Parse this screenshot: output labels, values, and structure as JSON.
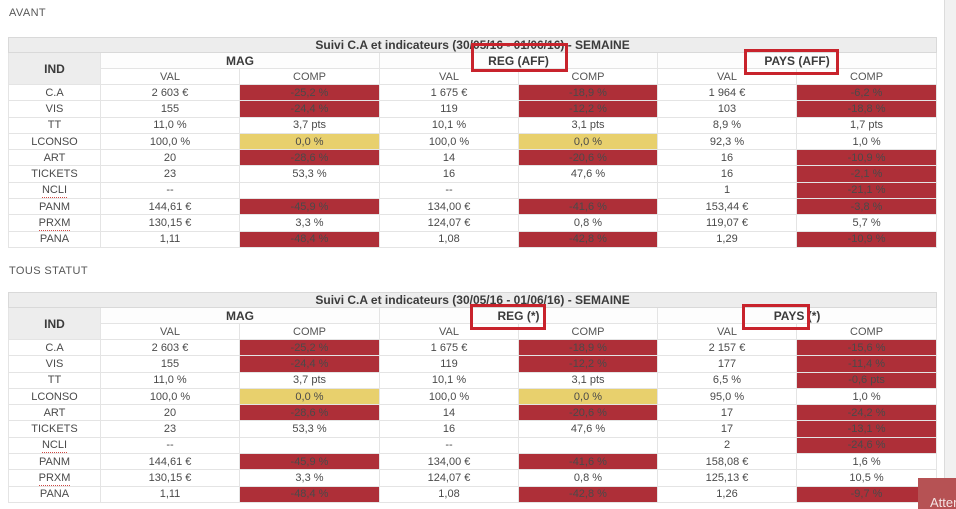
{
  "sections": [
    {
      "label": "AVANT"
    },
    {
      "label": "TOUS STATUT"
    }
  ],
  "toast": {
    "label": "Atten"
  },
  "scrollbar": {
    "name": "vertical-scrollbar"
  },
  "colors": {
    "negative_cell_bg": "#ae2f38",
    "negative_cell_text": "#ffffff",
    "warning_cell_bg": "#e8d06d",
    "header_bg": "#ededed",
    "annotation_border": "#c8232c",
    "toast_bg": "#b65254",
    "spellcheck_underline": "#d04a44"
  },
  "tables": [
    {
      "title": "Suivi C.A et indicateurs (30/05/16 - 01/06/16) - SEMAINE",
      "ind_header": "IND",
      "groups": [
        {
          "label": "MAG",
          "boxed": false
        },
        {
          "label": "REG (AFF)",
          "boxed": true
        },
        {
          "label": "PAYS (AFF)",
          "boxed": true
        }
      ],
      "subheaders": [
        {
          "label": "VAL",
          "sq": false
        },
        {
          "label": "COMP",
          "sq": true
        },
        {
          "label": "VAL",
          "sq": false
        },
        {
          "label": "COMP",
          "sq": true
        },
        {
          "label": "VAL",
          "sq": false
        },
        {
          "label": "COMP",
          "sq": true
        }
      ],
      "rows": [
        {
          "ind": "C.A",
          "sq": false,
          "cells": [
            {
              "v": "2 603 €",
              "s": "plain"
            },
            {
              "v": "-25,2 %",
              "s": "neg"
            },
            {
              "v": "1 675 €",
              "s": "plain"
            },
            {
              "v": "-18,9 %",
              "s": "neg"
            },
            {
              "v": "1 964 €",
              "s": "plain"
            },
            {
              "v": "-6,2 %",
              "s": "neg"
            }
          ]
        },
        {
          "ind": "VIS",
          "sq": false,
          "cells": [
            {
              "v": "155",
              "s": "plain"
            },
            {
              "v": "-24,4 %",
              "s": "neg"
            },
            {
              "v": "119",
              "s": "plain"
            },
            {
              "v": "-12,2 %",
              "s": "neg"
            },
            {
              "v": "103",
              "s": "plain"
            },
            {
              "v": "-18,8 %",
              "s": "neg"
            }
          ]
        },
        {
          "ind": "TT",
          "sq": false,
          "cells": [
            {
              "v": "11,0 %",
              "s": "plain"
            },
            {
              "v": "3,7 pts",
              "s": "plain"
            },
            {
              "v": "10,1 %",
              "s": "plain"
            },
            {
              "v": "3,1 pts",
              "s": "plain"
            },
            {
              "v": "8,9 %",
              "s": "plain"
            },
            {
              "v": "1,7 pts",
              "s": "plain"
            }
          ]
        },
        {
          "ind": "LCONSO",
          "sq": true,
          "cells": [
            {
              "v": "100,0 %",
              "s": "plain"
            },
            {
              "v": "0,0 %",
              "s": "warn"
            },
            {
              "v": "100,0 %",
              "s": "plain"
            },
            {
              "v": "0,0 %",
              "s": "warn"
            },
            {
              "v": "92,3 %",
              "s": "plain"
            },
            {
              "v": "1,0 %",
              "s": "plain"
            }
          ]
        },
        {
          "ind": "ART",
          "sq": false,
          "cells": [
            {
              "v": "20",
              "s": "plain"
            },
            {
              "v": "-28,6 %",
              "s": "neg"
            },
            {
              "v": "14",
              "s": "plain"
            },
            {
              "v": "-20,6 %",
              "s": "neg"
            },
            {
              "v": "16",
              "s": "plain"
            },
            {
              "v": "-10,9 %",
              "s": "neg"
            }
          ]
        },
        {
          "ind": "TICKETS",
          "sq": false,
          "cells": [
            {
              "v": "23",
              "s": "plain"
            },
            {
              "v": "53,3 %",
              "s": "plain"
            },
            {
              "v": "16",
              "s": "plain"
            },
            {
              "v": "47,6 %",
              "s": "plain"
            },
            {
              "v": "16",
              "s": "plain"
            },
            {
              "v": "-2,1 %",
              "s": "neg"
            }
          ]
        },
        {
          "ind": "NCLI",
          "sq": true,
          "cells": [
            {
              "v": "--",
              "s": "plain"
            },
            {
              "v": "",
              "s": "plain"
            },
            {
              "v": "--",
              "s": "plain"
            },
            {
              "v": "",
              "s": "plain"
            },
            {
              "v": "1",
              "s": "plain"
            },
            {
              "v": "-21,1 %",
              "s": "neg"
            }
          ]
        },
        {
          "ind": "PANM",
          "sq": true,
          "cells": [
            {
              "v": "144,61 €",
              "s": "plain"
            },
            {
              "v": "-45,9 %",
              "s": "neg"
            },
            {
              "v": "134,00 €",
              "s": "plain"
            },
            {
              "v": "-41,6 %",
              "s": "neg"
            },
            {
              "v": "153,44 €",
              "s": "plain"
            },
            {
              "v": "-3,8 %",
              "s": "neg"
            }
          ]
        },
        {
          "ind": "PRXM",
          "sq": true,
          "cells": [
            {
              "v": "130,15 €",
              "s": "plain"
            },
            {
              "v": "3,3 %",
              "s": "plain"
            },
            {
              "v": "124,07 €",
              "s": "plain"
            },
            {
              "v": "0,8 %",
              "s": "plain"
            },
            {
              "v": "119,07 €",
              "s": "plain"
            },
            {
              "v": "5,7 %",
              "s": "plain"
            }
          ]
        },
        {
          "ind": "PANA",
          "sq": false,
          "cells": [
            {
              "v": "1,11",
              "s": "plain"
            },
            {
              "v": "-48,4 %",
              "s": "neg"
            },
            {
              "v": "1,08",
              "s": "plain"
            },
            {
              "v": "-42,8 %",
              "s": "neg"
            },
            {
              "v": "1,29",
              "s": "plain"
            },
            {
              "v": "-10,9 %",
              "s": "neg"
            }
          ]
        }
      ]
    },
    {
      "title": "Suivi C.A et indicateurs (30/05/16 - 01/06/16) - SEMAINE",
      "ind_header": "IND",
      "groups": [
        {
          "label": "MAG",
          "boxed": false
        },
        {
          "label": "REG (*)",
          "boxed": true
        },
        {
          "label": "PAYS (*)",
          "boxed": true
        }
      ],
      "subheaders": [
        {
          "label": "VAL",
          "sq": false
        },
        {
          "label": "COMP",
          "sq": true
        },
        {
          "label": "VAL",
          "sq": false
        },
        {
          "label": "COMP",
          "sq": true
        },
        {
          "label": "VAL",
          "sq": false
        },
        {
          "label": "COMP",
          "sq": true
        }
      ],
      "rows": [
        {
          "ind": "C.A",
          "sq": false,
          "cells": [
            {
              "v": "2 603 €",
              "s": "plain"
            },
            {
              "v": "-25,2 %",
              "s": "neg"
            },
            {
              "v": "1 675 €",
              "s": "plain"
            },
            {
              "v": "-18,9 %",
              "s": "neg"
            },
            {
              "v": "2 157 €",
              "s": "plain"
            },
            {
              "v": "-15,6 %",
              "s": "neg"
            }
          ]
        },
        {
          "ind": "VIS",
          "sq": false,
          "cells": [
            {
              "v": "155",
              "s": "plain"
            },
            {
              "v": "-24,4 %",
              "s": "neg"
            },
            {
              "v": "119",
              "s": "plain"
            },
            {
              "v": "-12,2 %",
              "s": "neg"
            },
            {
              "v": "177",
              "s": "plain"
            },
            {
              "v": "-11,4 %",
              "s": "neg"
            }
          ]
        },
        {
          "ind": "TT",
          "sq": false,
          "cells": [
            {
              "v": "11,0 %",
              "s": "plain"
            },
            {
              "v": "3,7 pts",
              "s": "plain"
            },
            {
              "v": "10,1 %",
              "s": "plain"
            },
            {
              "v": "3,1 pts",
              "s": "plain"
            },
            {
              "v": "6,5 %",
              "s": "plain"
            },
            {
              "v": "-0,6 pts",
              "s": "neg"
            }
          ]
        },
        {
          "ind": "LCONSO",
          "sq": true,
          "cells": [
            {
              "v": "100,0 %",
              "s": "plain"
            },
            {
              "v": "0,0 %",
              "s": "warn"
            },
            {
              "v": "100,0 %",
              "s": "plain"
            },
            {
              "v": "0,0 %",
              "s": "warn"
            },
            {
              "v": "95,0 %",
              "s": "plain"
            },
            {
              "v": "1,0 %",
              "s": "plain"
            }
          ]
        },
        {
          "ind": "ART",
          "sq": false,
          "cells": [
            {
              "v": "20",
              "s": "plain"
            },
            {
              "v": "-28,6 %",
              "s": "neg"
            },
            {
              "v": "14",
              "s": "plain"
            },
            {
              "v": "-20,6 %",
              "s": "neg"
            },
            {
              "v": "17",
              "s": "plain"
            },
            {
              "v": "-24,2 %",
              "s": "neg"
            }
          ]
        },
        {
          "ind": "TICKETS",
          "sq": false,
          "cells": [
            {
              "v": "23",
              "s": "plain"
            },
            {
              "v": "53,3 %",
              "s": "plain"
            },
            {
              "v": "16",
              "s": "plain"
            },
            {
              "v": "47,6 %",
              "s": "plain"
            },
            {
              "v": "17",
              "s": "plain"
            },
            {
              "v": "-13,1 %",
              "s": "neg"
            }
          ]
        },
        {
          "ind": "NCLI",
          "sq": true,
          "cells": [
            {
              "v": "--",
              "s": "plain"
            },
            {
              "v": "",
              "s": "plain"
            },
            {
              "v": "--",
              "s": "plain"
            },
            {
              "v": "",
              "s": "plain"
            },
            {
              "v": "2",
              "s": "plain"
            },
            {
              "v": "-24,6 %",
              "s": "neg"
            }
          ]
        },
        {
          "ind": "PANM",
          "sq": true,
          "cells": [
            {
              "v": "144,61 €",
              "s": "plain"
            },
            {
              "v": "-45,9 %",
              "s": "neg"
            },
            {
              "v": "134,00 €",
              "s": "plain"
            },
            {
              "v": "-41,6 %",
              "s": "neg"
            },
            {
              "v": "158,08 €",
              "s": "plain"
            },
            {
              "v": "1,6 %",
              "s": "plain"
            }
          ]
        },
        {
          "ind": "PRXM",
          "sq": true,
          "cells": [
            {
              "v": "130,15 €",
              "s": "plain"
            },
            {
              "v": "3,3 %",
              "s": "plain"
            },
            {
              "v": "124,07 €",
              "s": "plain"
            },
            {
              "v": "0,8 %",
              "s": "plain"
            },
            {
              "v": "125,13 €",
              "s": "plain"
            },
            {
              "v": "10,5 %",
              "s": "plain"
            }
          ]
        },
        {
          "ind": "PANA",
          "sq": false,
          "cells": [
            {
              "v": "1,11",
              "s": "plain"
            },
            {
              "v": "-48,4 %",
              "s": "neg"
            },
            {
              "v": "1,08",
              "s": "plain"
            },
            {
              "v": "-42,8 %",
              "s": "neg"
            },
            {
              "v": "1,26",
              "s": "plain"
            },
            {
              "v": "-9,7 %",
              "s": "neg"
            }
          ]
        }
      ]
    }
  ]
}
